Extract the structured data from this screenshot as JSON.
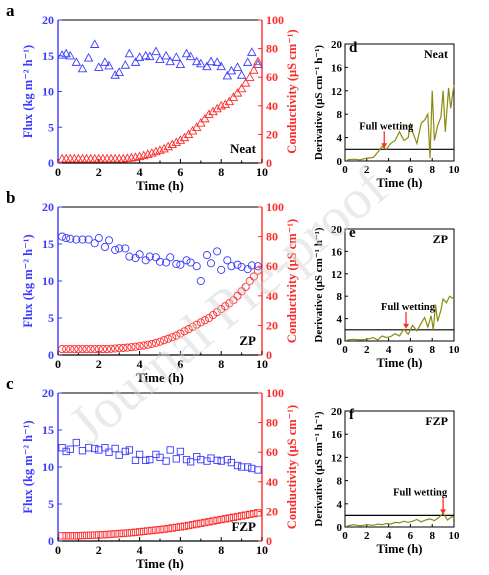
{
  "watermark": "Journal Pre-proof",
  "chart_data": [
    {
      "id": "a",
      "type": "scatter",
      "panel_letter": "a",
      "annotation": "Neat",
      "xlabel": "Time (h)",
      "ylabel": "Flux (kg m⁻² h⁻¹)",
      "y2label": "Conductivity (μS cm⁻¹)",
      "xlim": [
        0,
        10
      ],
      "ylim": [
        0,
        20
      ],
      "y2lim": [
        0,
        100
      ],
      "xticks": [
        "0",
        "2",
        "4",
        "6",
        "8",
        "10"
      ],
      "yticks": [
        "0",
        "5",
        "10",
        "15",
        "20"
      ],
      "y2ticks": [
        "0",
        "20",
        "40",
        "60",
        "80",
        "100"
      ],
      "colors": {
        "flux": "#3b3bff",
        "conductivity": "#ff2a2a"
      },
      "markers": {
        "flux": "triangle",
        "conductivity": "triangle"
      },
      "series": [
        {
          "axis": "left",
          "x": [
            0.2,
            0.4,
            0.6,
            0.9,
            1.2,
            1.5,
            1.8,
            2.0,
            2.3,
            2.5,
            2.8,
            3.0,
            3.3,
            3.5,
            3.8,
            4.0,
            4.3,
            4.5,
            4.8,
            5.0,
            5.3,
            5.5,
            5.8,
            6.0,
            6.3,
            6.5,
            6.8,
            7.0,
            7.3,
            7.5,
            7.8,
            8.0,
            8.3,
            8.5,
            8.8,
            9.0,
            9.3,
            9.5,
            9.8
          ],
          "values": [
            15.1,
            15.3,
            15.0,
            14.1,
            13.2,
            14.7,
            16.6,
            13.4,
            14.1,
            13.6,
            12.3,
            12.7,
            13.7,
            15.3,
            14.1,
            14.8,
            15.0,
            14.9,
            15.6,
            14.5,
            15.0,
            14.2,
            14.8,
            13.8,
            15.3,
            14.9,
            14.2,
            13.9,
            13.5,
            14.2,
            14.1,
            13.5,
            12.2,
            12.9,
            13.4,
            12.3,
            14.1,
            15.5,
            13.8
          ]
        },
        {
          "axis": "right",
          "x": [
            0.2,
            0.4,
            0.6,
            0.8,
            1.0,
            1.2,
            1.4,
            1.6,
            1.8,
            2.0,
            2.2,
            2.4,
            2.6,
            2.8,
            3.0,
            3.2,
            3.4,
            3.6,
            3.8,
            4.0,
            4.2,
            4.4,
            4.6,
            4.8,
            5.0,
            5.2,
            5.4,
            5.6,
            5.8,
            6.0,
            6.2,
            6.4,
            6.6,
            6.8,
            7.0,
            7.2,
            7.4,
            7.6,
            7.8,
            8.0,
            8.2,
            8.4,
            8.6,
            8.8,
            9.0,
            9.2,
            9.4,
            9.6,
            9.8
          ],
          "values": [
            3,
            3,
            3,
            3,
            3,
            3,
            3,
            3,
            3,
            3,
            3,
            3,
            3,
            3,
            3,
            3,
            3.3,
            3.6,
            4,
            4.6,
            5.3,
            6.1,
            7,
            8,
            9,
            10,
            11.5,
            13,
            14.5,
            16,
            17.8,
            20,
            22.5,
            25,
            28,
            31,
            34,
            36,
            38,
            40,
            41,
            43,
            46,
            49,
            52,
            56,
            60,
            65,
            71
          ]
        }
      ]
    },
    {
      "id": "b",
      "type": "scatter",
      "panel_letter": "b",
      "annotation": "ZP",
      "xlabel": "Time (h)",
      "ylabel": "Flux (kg m⁻² h⁻¹)",
      "y2label": "Conductivity (μS cm⁻¹)",
      "xlim": [
        0,
        10
      ],
      "ylim": [
        0,
        20
      ],
      "y2lim": [
        0,
        100
      ],
      "xticks": [
        "0",
        "2",
        "4",
        "6",
        "8",
        "10"
      ],
      "yticks": [
        "0",
        "5",
        "10",
        "15",
        "20"
      ],
      "y2ticks": [
        "0",
        "20",
        "40",
        "60",
        "80",
        "100"
      ],
      "colors": {
        "flux": "#3b3bff",
        "conductivity": "#ff2a2a"
      },
      "markers": {
        "flux": "circle",
        "conductivity": "circle"
      },
      "series": [
        {
          "axis": "left",
          "x": [
            0.2,
            0.4,
            0.6,
            0.9,
            1.2,
            1.5,
            1.8,
            2.0,
            2.3,
            2.5,
            2.8,
            3.0,
            3.3,
            3.5,
            3.8,
            4.0,
            4.3,
            4.5,
            4.8,
            5.0,
            5.3,
            5.5,
            5.8,
            6.0,
            6.3,
            6.5,
            6.8,
            7.0,
            7.3,
            7.5,
            7.8,
            8.0,
            8.3,
            8.5,
            8.8,
            9.0,
            9.3,
            9.5,
            9.8
          ],
          "values": [
            16.0,
            15.8,
            15.7,
            15.6,
            15.6,
            15.6,
            15.1,
            15.8,
            14.6,
            15.5,
            14.2,
            14.4,
            14.4,
            13.3,
            13.1,
            13.6,
            12.8,
            13.3,
            13.2,
            12.6,
            12.5,
            13.2,
            12.3,
            12.2,
            12.8,
            12.5,
            12.0,
            10.0,
            13.5,
            12.4,
            14.0,
            11.5,
            12.8,
            12.0,
            12.2,
            11.9,
            11.6,
            12.1,
            12.0
          ]
        },
        {
          "axis": "right",
          "x": [
            0.2,
            0.4,
            0.6,
            0.8,
            1.0,
            1.2,
            1.4,
            1.6,
            1.8,
            2.0,
            2.2,
            2.4,
            2.6,
            2.8,
            3.0,
            3.2,
            3.4,
            3.6,
            3.8,
            4.0,
            4.2,
            4.4,
            4.6,
            4.8,
            5.0,
            5.2,
            5.4,
            5.6,
            5.8,
            6.0,
            6.2,
            6.4,
            6.6,
            6.8,
            7.0,
            7.2,
            7.4,
            7.6,
            7.8,
            8.0,
            8.2,
            8.4,
            8.6,
            8.8,
            9.0,
            9.2,
            9.4,
            9.6,
            9.8
          ],
          "values": [
            4,
            4,
            4,
            4,
            4,
            4,
            4,
            4,
            4,
            4,
            4,
            4,
            4.2,
            4.4,
            4.6,
            4.8,
            5,
            5.3,
            5.6,
            6,
            6.4,
            6.9,
            7.5,
            8.2,
            9,
            10,
            11,
            12,
            13.2,
            14.5,
            16,
            17.5,
            19,
            20.5,
            22,
            23.5,
            25,
            27,
            29,
            31,
            33,
            35,
            37,
            40,
            43,
            46,
            50,
            53,
            57
          ]
        }
      ]
    },
    {
      "id": "c",
      "type": "scatter",
      "panel_letter": "c",
      "annotation": "FZP",
      "xlabel": "Time (h)",
      "ylabel": "Flux (kg m⁻² h⁻¹)",
      "y2label": "Conductivity (μS cm⁻¹)",
      "xlim": [
        0,
        10
      ],
      "ylim": [
        0,
        20
      ],
      "y2lim": [
        0,
        100
      ],
      "xticks": [
        "0",
        "2",
        "4",
        "6",
        "8",
        "10"
      ],
      "yticks": [
        "0",
        "5",
        "10",
        "15",
        "20"
      ],
      "y2ticks": [
        "0",
        "20",
        "40",
        "60",
        "80",
        "100"
      ],
      "colors": {
        "flux": "#3b3bff",
        "conductivity": "#ff2a2a"
      },
      "markers": {
        "flux": "square",
        "conductivity": "square"
      },
      "series": [
        {
          "axis": "left",
          "x": [
            0.2,
            0.4,
            0.6,
            0.9,
            1.2,
            1.5,
            1.8,
            2.0,
            2.3,
            2.5,
            2.8,
            3.0,
            3.3,
            3.5,
            3.8,
            4.0,
            4.3,
            4.5,
            4.8,
            5.0,
            5.3,
            5.5,
            5.8,
            6.0,
            6.3,
            6.5,
            6.8,
            7.0,
            7.3,
            7.5,
            7.8,
            8.0,
            8.3,
            8.5,
            8.8,
            9.0,
            9.3,
            9.5,
            9.8
          ],
          "values": [
            12.6,
            12.1,
            12.4,
            13.3,
            12.2,
            12.6,
            12.5,
            12.3,
            12.6,
            12.0,
            12.5,
            11.6,
            12.1,
            12.3,
            10.9,
            11.7,
            10.9,
            11.0,
            11.7,
            11.3,
            10.8,
            12.3,
            11.1,
            12.1,
            11.0,
            10.7,
            11.4,
            11.0,
            10.8,
            11.2,
            10.9,
            10.8,
            11.0,
            10.6,
            10.2,
            10.0,
            10.0,
            9.8,
            9.6
          ]
        },
        {
          "axis": "right",
          "x": [
            0.2,
            0.4,
            0.6,
            0.8,
            1.0,
            1.2,
            1.4,
            1.6,
            1.8,
            2.0,
            2.2,
            2.4,
            2.6,
            2.8,
            3.0,
            3.2,
            3.4,
            3.6,
            3.8,
            4.0,
            4.2,
            4.4,
            4.6,
            4.8,
            5.0,
            5.2,
            5.4,
            5.6,
            5.8,
            6.0,
            6.2,
            6.4,
            6.6,
            6.8,
            7.0,
            7.2,
            7.4,
            7.6,
            7.8,
            8.0,
            8.2,
            8.4,
            8.6,
            8.8,
            9.0,
            9.2,
            9.4,
            9.6,
            9.8
          ],
          "values": [
            3.5,
            3.5,
            3.5,
            3.5,
            3.6,
            3.7,
            3.8,
            3.9,
            4.0,
            4.1,
            4.2,
            4.4,
            4.6,
            4.8,
            5.0,
            5.2,
            5.4,
            5.6,
            5.9,
            6.2,
            6.5,
            6.8,
            7.1,
            7.4,
            7.7,
            8.0,
            8.4,
            8.8,
            9.2,
            9.6,
            10,
            10.5,
            11,
            11.5,
            12,
            12.5,
            13,
            13.5,
            14,
            14.5,
            15,
            15.5,
            16,
            16.5,
            17,
            17.5,
            18,
            18.5,
            19
          ]
        }
      ]
    },
    {
      "id": "d",
      "type": "line",
      "panel_letter": "d",
      "annotation": "Neat",
      "xlabel": "Time (h)",
      "ylabel": "Derivative (μS cm⁻¹ h⁻¹)",
      "xlim": [
        0,
        10
      ],
      "ylim": [
        0,
        20
      ],
      "xticks": [
        "0",
        "2",
        "4",
        "6",
        "8",
        "10"
      ],
      "yticks": [
        "0",
        "4",
        "8",
        "12",
        "16",
        "20"
      ],
      "threshold": 2,
      "threshold_label": "Full wetting",
      "wetting_x": 3.6,
      "line_color": "#8a8a10",
      "x": [
        0.2,
        0.8,
        1.4,
        2.0,
        2.6,
        3.0,
        3.4,
        3.8,
        4.2,
        4.6,
        5.0,
        5.4,
        5.8,
        6.0,
        6.2,
        6.6,
        7.0,
        7.3,
        7.6,
        7.8,
        8.0,
        8.2,
        8.5,
        8.8,
        9.0,
        9.2,
        9.5,
        9.7,
        10.0
      ],
      "values": [
        0.2,
        0.3,
        0.2,
        0.5,
        0.6,
        1.5,
        2.5,
        2.0,
        3.0,
        3.5,
        5.0,
        3.5,
        4.0,
        6.5,
        5.0,
        3.0,
        6.5,
        7.0,
        8.0,
        0.5,
        12.0,
        3.5,
        6.0,
        7.5,
        12.0,
        5.0,
        12.5,
        9.0,
        13.0
      ]
    },
    {
      "id": "e",
      "type": "line",
      "panel_letter": "e",
      "annotation": "ZP",
      "xlabel": "Time (h)",
      "ylabel": "Derivative (μS cm⁻¹ h⁻¹)",
      "xlim": [
        0,
        10
      ],
      "ylim": [
        0,
        20
      ],
      "xticks": [
        "0",
        "2",
        "4",
        "6",
        "8",
        "10"
      ],
      "yticks": [
        "0",
        "4",
        "8",
        "12",
        "16",
        "20"
      ],
      "threshold": 2,
      "threshold_label": "Full wetting",
      "wetting_x": 5.6,
      "line_color": "#8a8a10",
      "x": [
        0.2,
        0.8,
        1.4,
        2.0,
        2.6,
        3.0,
        3.4,
        3.8,
        4.2,
        4.6,
        5.0,
        5.4,
        5.8,
        6.2,
        6.6,
        7.0,
        7.3,
        7.6,
        7.9,
        8.1,
        8.3,
        8.5,
        8.8,
        9.0,
        9.3,
        9.6,
        10.0
      ],
      "values": [
        0.2,
        0.3,
        0.2,
        0.3,
        0.6,
        0.2,
        0.9,
        0.6,
        0.8,
        1.3,
        0.9,
        2.1,
        1.2,
        2.8,
        1.8,
        3.2,
        4.2,
        2.5,
        4.5,
        2.0,
        6.5,
        3.5,
        5.5,
        7.5,
        6.8,
        8.0,
        7.5
      ]
    },
    {
      "id": "f",
      "type": "line",
      "panel_letter": "f",
      "annotation": "FZP",
      "xlabel": "Time (h)",
      "ylabel": "Derivative (μS cm⁻¹ h⁻¹)",
      "xlim": [
        0,
        10
      ],
      "ylim": [
        0,
        20
      ],
      "xticks": [
        "0",
        "2",
        "4",
        "6",
        "8",
        "10"
      ],
      "yticks": [
        "0",
        "4",
        "8",
        "12",
        "16",
        "20"
      ],
      "threshold": 2,
      "threshold_label": "Full wetting",
      "wetting_x": 9.0,
      "line_color": "#8a8a10",
      "x": [
        0.2,
        0.8,
        1.4,
        2.0,
        2.6,
        3.0,
        3.4,
        3.8,
        4.2,
        4.6,
        5.0,
        5.4,
        5.8,
        6.2,
        6.6,
        7.0,
        7.4,
        7.8,
        8.2,
        8.6,
        9.0,
        9.4,
        9.8,
        10.0
      ],
      "values": [
        0.2,
        0.4,
        0.2,
        0.4,
        0.3,
        0.5,
        0.4,
        0.6,
        0.5,
        0.8,
        0.7,
        1.0,
        0.8,
        1.0,
        1.3,
        0.9,
        1.2,
        1.4,
        1.1,
        1.6,
        2.4,
        1.2,
        1.8,
        1.6
      ]
    }
  ]
}
